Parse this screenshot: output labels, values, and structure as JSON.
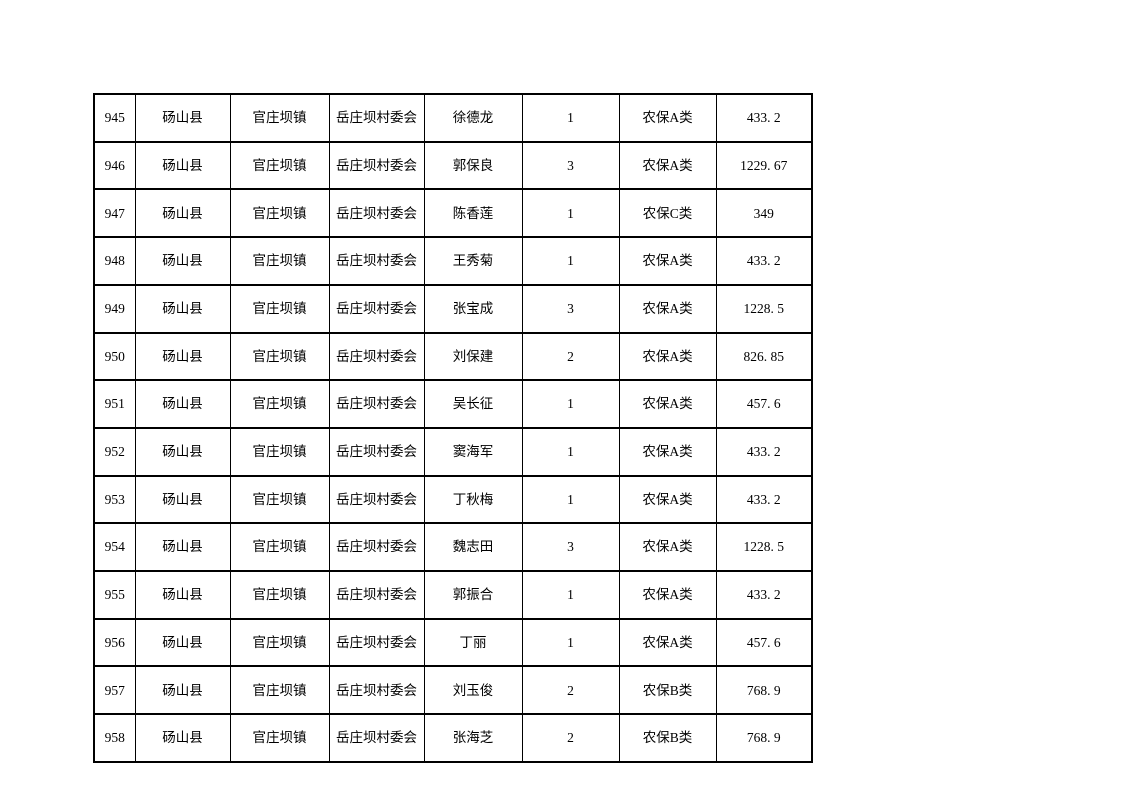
{
  "page": {
    "background_color": "#ffffff",
    "text_color": "#000000",
    "table_border_color": "#000000"
  },
  "table": {
    "columns": [
      {
        "key": "serial-number"
      },
      {
        "key": "county"
      },
      {
        "key": "town"
      },
      {
        "key": "village-committee"
      },
      {
        "key": "person-name"
      },
      {
        "key": "person-count"
      },
      {
        "key": "insurance-category"
      },
      {
        "key": "amount"
      }
    ],
    "rows": [
      [
        "945",
        "砀山县",
        "官庄坝镇",
        "岳庄坝村委会",
        "徐德龙",
        "1",
        "农保A类",
        "433. 2"
      ],
      [
        "946",
        "砀山县",
        "官庄坝镇",
        "岳庄坝村委会",
        "郭保良",
        "3",
        "农保A类",
        "1229. 67"
      ],
      [
        "947",
        "砀山县",
        "官庄坝镇",
        "岳庄坝村委会",
        "陈香莲",
        "1",
        "农保C类",
        "349"
      ],
      [
        "948",
        "砀山县",
        "官庄坝镇",
        "岳庄坝村委会",
        "王秀菊",
        "1",
        "农保A类",
        "433. 2"
      ],
      [
        "949",
        "砀山县",
        "官庄坝镇",
        "岳庄坝村委会",
        "张宝成",
        "3",
        "农保A类",
        "1228. 5"
      ],
      [
        "950",
        "砀山县",
        "官庄坝镇",
        "岳庄坝村委会",
        "刘保建",
        "2",
        "农保A类",
        "826. 85"
      ],
      [
        "951",
        "砀山县",
        "官庄坝镇",
        "岳庄坝村委会",
        "吴长征",
        "1",
        "农保A类",
        "457. 6"
      ],
      [
        "952",
        "砀山县",
        "官庄坝镇",
        "岳庄坝村委会",
        "窦海军",
        "1",
        "农保A类",
        "433. 2"
      ],
      [
        "953",
        "砀山县",
        "官庄坝镇",
        "岳庄坝村委会",
        "丁秋梅",
        "1",
        "农保A类",
        "433. 2"
      ],
      [
        "954",
        "砀山县",
        "官庄坝镇",
        "岳庄坝村委会",
        "魏志田",
        "3",
        "农保A类",
        "1228. 5"
      ],
      [
        "955",
        "砀山县",
        "官庄坝镇",
        "岳庄坝村委会",
        "郭振合",
        "1",
        "农保A类",
        "433. 2"
      ],
      [
        "956",
        "砀山县",
        "官庄坝镇",
        "岳庄坝村委会",
        "丁丽",
        "1",
        "农保A类",
        "457. 6"
      ],
      [
        "957",
        "砀山县",
        "官庄坝镇",
        "岳庄坝村委会",
        "刘玉俊",
        "2",
        "农保B类",
        "768. 9"
      ],
      [
        "958",
        "砀山县",
        "官庄坝镇",
        "岳庄坝村委会",
        "张海芝",
        "2",
        "农保B类",
        "768. 9"
      ]
    ]
  }
}
